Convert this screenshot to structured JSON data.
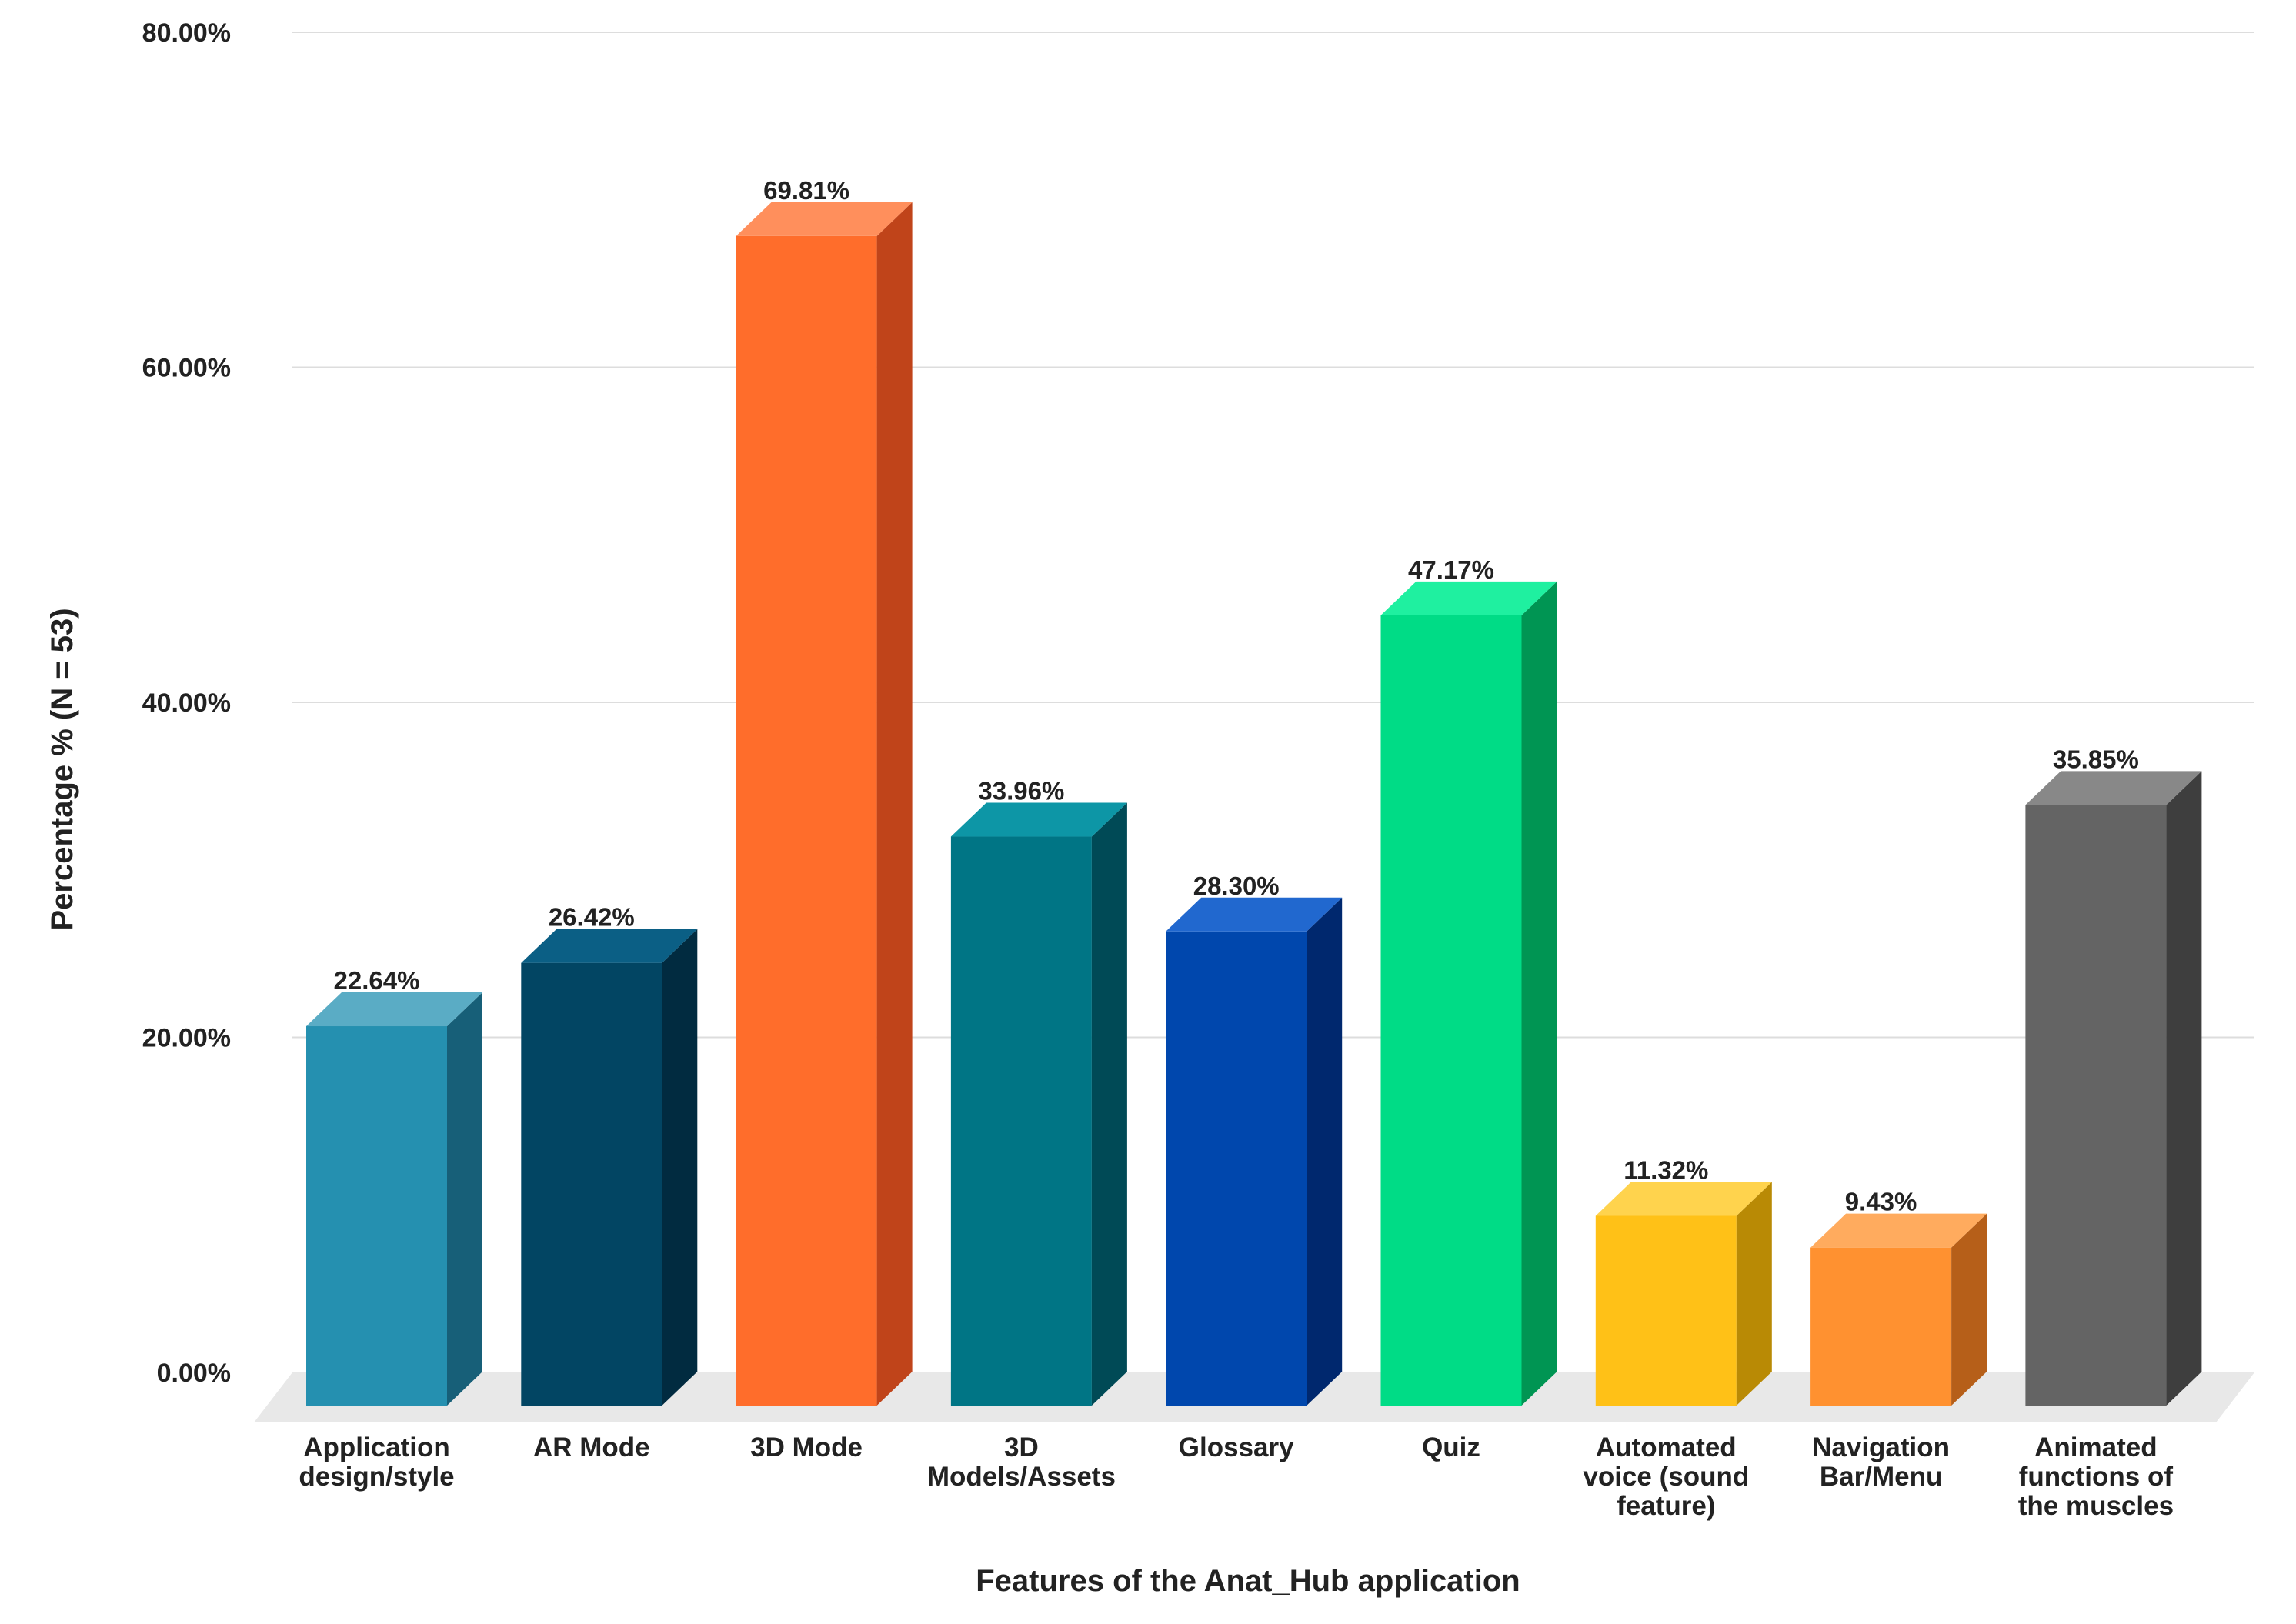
{
  "chart_data": {
    "type": "bar",
    "title": "",
    "xlabel": "Features of the Anat_Hub application",
    "ylabel": "Percentage % (N = 53)",
    "ylim": [
      0,
      80
    ],
    "yticks": [
      0,
      20,
      40,
      60,
      80
    ],
    "ytick_labels": [
      "0.00%",
      "20.00%",
      "40.00%",
      "60.00%",
      "80.00%"
    ],
    "grid": true,
    "style": "3d-column",
    "categories": [
      [
        "Application",
        "design/style"
      ],
      [
        "AR Mode"
      ],
      [
        "3D Mode"
      ],
      [
        "3D",
        "Models/Assets"
      ],
      [
        "Glossary"
      ],
      [
        "Quiz"
      ],
      [
        "Automated",
        "voice (sound",
        "feature)"
      ],
      [
        "Navigation",
        "Bar/Menu"
      ],
      [
        "Animated",
        "functions of",
        "the muscles"
      ]
    ],
    "values": [
      22.64,
      26.42,
      69.81,
      33.96,
      28.3,
      47.17,
      11.32,
      9.43,
      35.85
    ],
    "value_labels": [
      "22.64%",
      "26.42%",
      "69.81%",
      "33.96%",
      "28.30%",
      "47.17%",
      "11.32%",
      "9.43%",
      "35.85%"
    ],
    "colors": [
      {
        "front": "#2590b0",
        "side": "#175f78",
        "top": "#5aacc5"
      },
      {
        "front": "#024563",
        "side": "#012b40",
        "top": "#0b5f85"
      },
      {
        "front": "#ff6d2b",
        "side": "#c0441a",
        "top": "#ff8f5c"
      },
      {
        "front": "#007585",
        "side": "#004a56",
        "top": "#0d96a6"
      },
      {
        "front": "#0047ad",
        "side": "#00286e",
        "top": "#2168cf"
      },
      {
        "front": "#00dc86",
        "side": "#009553",
        "top": "#1ff0a0"
      },
      {
        "front": "#ffc117",
        "side": "#b98a05",
        "top": "#ffd34d"
      },
      {
        "front": "#ff9130",
        "side": "#b65f19",
        "top": "#ffab5e"
      },
      {
        "front": "#646464",
        "side": "#3e3e3e",
        "top": "#888888"
      }
    ],
    "gridline_color": "#dddddd",
    "floor_color": "#e8e8e8"
  }
}
